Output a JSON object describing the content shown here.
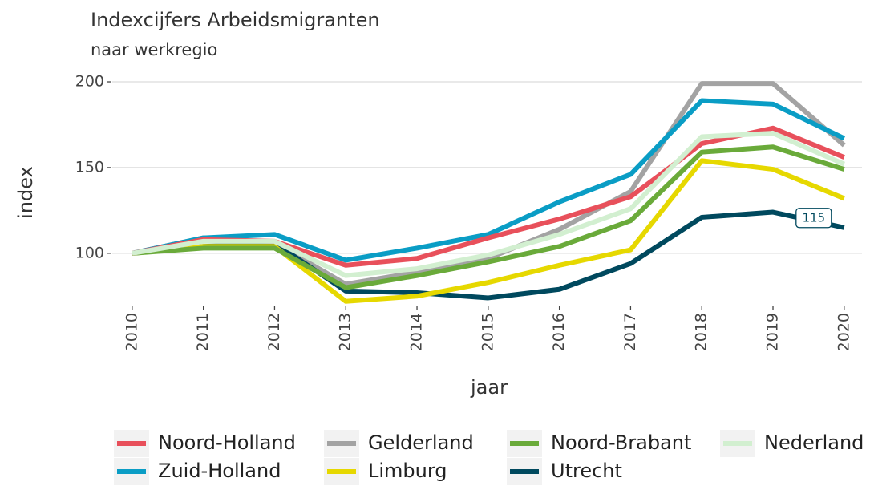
{
  "chart_data": {
    "type": "line",
    "title": "Indexcijfers Arbeidsmigranten",
    "subtitle": "naar werkregio",
    "x_label": "jaar",
    "y_label": "index",
    "x": [
      2010,
      2011,
      2012,
      2013,
      2014,
      2015,
      2016,
      2017,
      2018,
      2019,
      2020
    ],
    "xlim": [
      2009.72,
      2020.25
    ],
    "xticks": [
      2010,
      2011,
      2012,
      2013,
      2014,
      2015,
      2016,
      2017,
      2018,
      2019,
      2020
    ],
    "ylim": [
      70,
      203
    ],
    "yticks": [
      100,
      150,
      200
    ],
    "grid": true,
    "legend": "bottom",
    "series": [
      {
        "name": "Noord-Holland",
        "color": "#e8505b",
        "values": [
          100,
          108,
          107,
          93,
          97,
          109,
          120,
          133,
          164,
          173,
          156
        ]
      },
      {
        "name": "Zuid-Holland",
        "color": "#0a9dc5",
        "values": [
          100,
          109,
          111,
          96,
          103,
          111,
          130,
          146,
          189,
          187,
          167
        ]
      },
      {
        "name": "Gelderland",
        "color": "#a3a3a3",
        "values": [
          100,
          109,
          106,
          82,
          89,
          97,
          114,
          136,
          199,
          199,
          163
        ]
      },
      {
        "name": "Limburg",
        "color": "#e6d800",
        "values": [
          100,
          104,
          104,
          72,
          75,
          83,
          93,
          102,
          154,
          149,
          132
        ]
      },
      {
        "name": "Noord-Brabant",
        "color": "#6aaa3a",
        "values": [
          100,
          103,
          103,
          80,
          87,
          95,
          104,
          119,
          159,
          162,
          149
        ]
      },
      {
        "name": "Utrecht",
        "color": "#00495e",
        "values": [
          100,
          104,
          106,
          78,
          77,
          74,
          79,
          94,
          121,
          124,
          115
        ]
      },
      {
        "name": "Nederland",
        "color": "#d2efd0",
        "values": [
          100,
          107,
          107,
          87,
          91,
          99,
          111,
          126,
          168,
          170,
          152
        ]
      }
    ],
    "annotation": "115"
  }
}
